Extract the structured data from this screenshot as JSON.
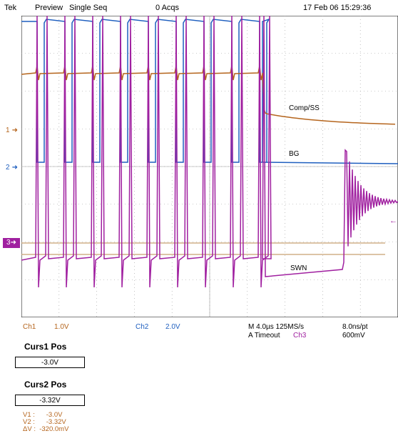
{
  "header": {
    "brand": "Tek",
    "mode": "Preview",
    "acq_mode": "Single Seq",
    "acqs": "0 Acqs",
    "datetime": "17 Feb 06 15:29:36"
  },
  "markers": {
    "ch1": "1",
    "ch2": "2",
    "ch3": "3"
  },
  "trace_labels": {
    "comp_ss": "Comp/SS",
    "bg": "BG",
    "swn": "SWN"
  },
  "readout": {
    "ch1_name": "Ch1",
    "ch1_scale": "1.0V",
    "ch2_name": "Ch2",
    "ch2_scale": "2.0V",
    "timebase": "M 4.0µs 125MS/s",
    "sample": "8.0ns/pt",
    "trigger": "A  Timeout",
    "trig_ch": "Ch3",
    "trig_level": "600mV"
  },
  "cursors": {
    "curs1_title": "Curs1 Pos",
    "curs1_value": "-3.0V",
    "curs2_title": "Curs2 Pos",
    "curs2_value": "-3.32V",
    "v1": "V1 :      -3.0V",
    "v2": "V2 :      -3.32V",
    "dv": "ΔV :  -320.0mV"
  },
  "colors": {
    "ch1": "#b5651d",
    "ch2": "#1f5fbf",
    "ch3": "#a020a0",
    "grid": "#9a9a9a",
    "cursor": "#c8a070"
  }
}
